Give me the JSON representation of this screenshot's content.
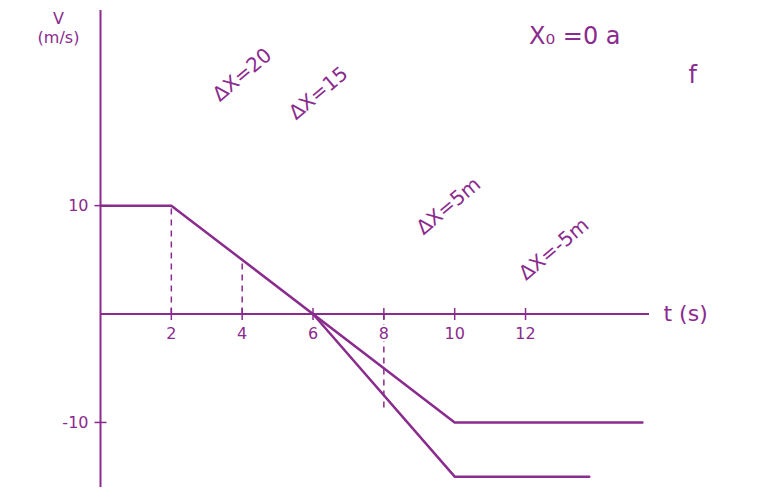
{
  "chart_data": {
    "type": "line",
    "xlabel": "t (s)",
    "ylabel": "V (m/s)",
    "color": "#8a2b8e",
    "grid": false,
    "xlim": [
      0,
      15.5
    ],
    "ylim": [
      -16,
      28
    ],
    "xticks": [
      2,
      4,
      6,
      8,
      10,
      12
    ],
    "yticks": [
      -10,
      10
    ],
    "series": [
      {
        "color": "#8a2b8e",
        "x": [
          0,
          2,
          10,
          15.3
        ],
        "values": [
          10,
          10,
          -10,
          -10
        ]
      },
      {
        "color": "#8a2b8e",
        "x": [
          6,
          10,
          13.8
        ],
        "values": [
          0,
          -15,
          -15
        ]
      }
    ],
    "guides": [
      {
        "x": 2,
        "y": 10
      },
      {
        "x": 4,
        "y": 5
      },
      {
        "x": 8,
        "y": -9
      }
    ],
    "annotations": [
      {
        "text": "ΔX=20",
        "x": 3.25,
        "y": 20,
        "rotated": true
      },
      {
        "text": "ΔX=15",
        "x": 5.4,
        "y": 18.3,
        "rotated": true
      },
      {
        "text": "ΔX=5m",
        "x": 9.0,
        "y": 7.7,
        "rotated": true
      },
      {
        "text": "ΔX=-5m",
        "x": 11.9,
        "y": 3.5,
        "rotated": true
      },
      {
        "text": "X₀ =0 a",
        "x": 12.1,
        "y": 25.6,
        "rotated": false
      },
      {
        "text": "f",
        "x": 16.6,
        "y": 22,
        "rotated": false
      }
    ]
  }
}
